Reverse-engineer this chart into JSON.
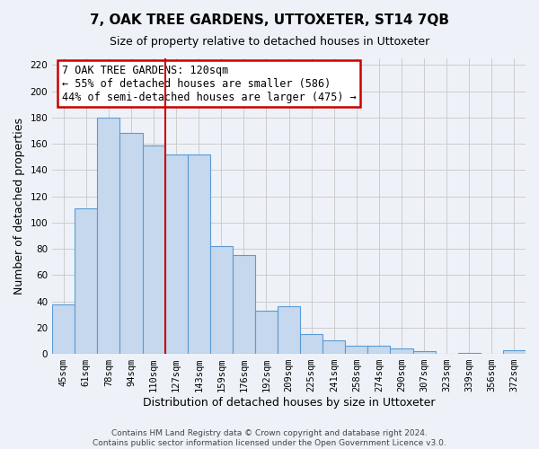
{
  "title": "7, OAK TREE GARDENS, UTTOXETER, ST14 7QB",
  "subtitle": "Size of property relative to detached houses in Uttoxeter",
  "xlabel": "Distribution of detached houses by size in Uttoxeter",
  "ylabel": "Number of detached properties",
  "footer_line1": "Contains HM Land Registry data © Crown copyright and database right 2024.",
  "footer_line2": "Contains public sector information licensed under the Open Government Licence v3.0.",
  "categories": [
    "45sqm",
    "61sqm",
    "78sqm",
    "94sqm",
    "110sqm",
    "127sqm",
    "143sqm",
    "159sqm",
    "176sqm",
    "192sqm",
    "209sqm",
    "225sqm",
    "241sqm",
    "258sqm",
    "274sqm",
    "290sqm",
    "307sqm",
    "323sqm",
    "339sqm",
    "356sqm",
    "372sqm"
  ],
  "values": [
    38,
    111,
    180,
    168,
    159,
    152,
    152,
    82,
    75,
    33,
    36,
    15,
    10,
    6,
    6,
    4,
    2,
    0,
    1,
    0,
    3
  ],
  "bar_color": "#c5d8ed",
  "bar_edge_color": "#5b9bd5",
  "grid_color": "#cccccc",
  "bg_color": "#eef2f8",
  "vline_color": "#cc0000",
  "annotation_title": "7 OAK TREE GARDENS: 120sqm",
  "annotation_line1": "← 55% of detached houses are smaller (586)",
  "annotation_line2": "44% of semi-detached houses are larger (475) →",
  "annotation_box_color": "white",
  "annotation_box_edge_color": "#cc0000",
  "ylim": [
    0,
    225
  ],
  "yticks": [
    0,
    20,
    40,
    60,
    80,
    100,
    120,
    140,
    160,
    180,
    200,
    220
  ],
  "title_fontsize": 11,
  "subtitle_fontsize": 9,
  "ylabel_fontsize": 9,
  "xlabel_fontsize": 9,
  "tick_fontsize": 7.5,
  "annot_fontsize": 8.5,
  "footer_fontsize": 6.5
}
